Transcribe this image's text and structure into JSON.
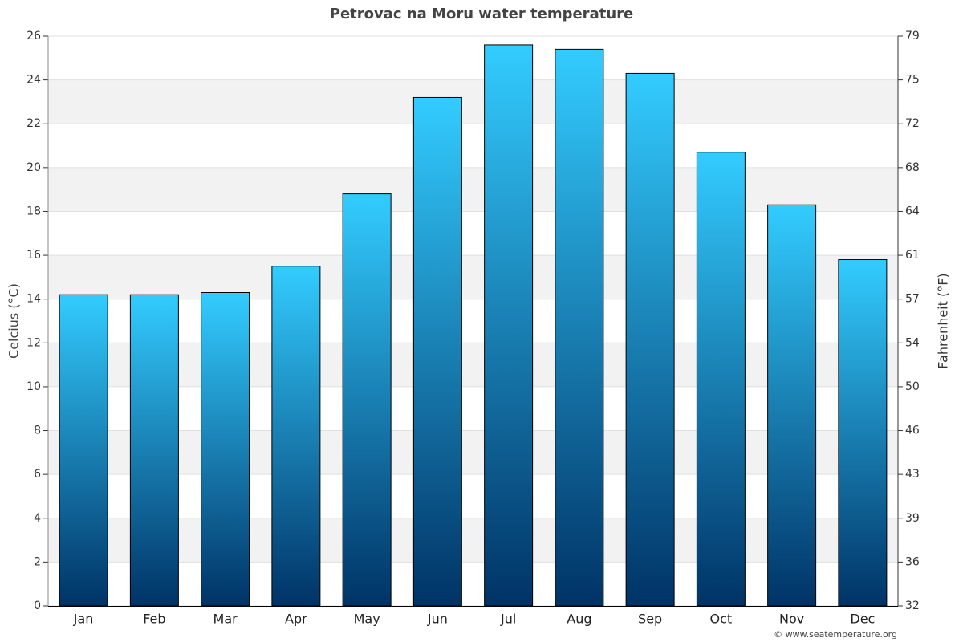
{
  "chart_data": {
    "type": "bar",
    "title": "Petrovac na Moru water temperature",
    "categories": [
      "Jan",
      "Feb",
      "Mar",
      "Apr",
      "May",
      "Jun",
      "Jul",
      "Aug",
      "Sep",
      "Oct",
      "Nov",
      "Dec"
    ],
    "series": [
      {
        "name": "Water temperature",
        "color": [
          "#33ccff",
          "#003366"
        ],
        "values": [
          14.2,
          14.2,
          14.3,
          15.5,
          18.8,
          23.2,
          25.6,
          25.4,
          24.3,
          20.7,
          18.3,
          15.8
        ]
      }
    ],
    "ylabel": "Celcius (°C)",
    "y2label": "Fahrenheit (°F)",
    "ylim": [
      0,
      26
    ],
    "yticks": [
      0,
      2,
      4,
      6,
      8,
      10,
      12,
      14,
      16,
      18,
      20,
      22,
      24,
      26
    ],
    "y2lim": [
      32,
      78.8
    ],
    "y2ticks": [
      32,
      {
        "value": 35.6,
        "label": "36"
      },
      {
        "value": 39.2,
        "label": "39"
      },
      {
        "value": 42.8,
        "label": "43"
      },
      {
        "value": 46.4,
        "label": "46"
      },
      50,
      {
        "value": 53.6,
        "label": "54"
      },
      {
        "value": 57.2,
        "label": "57"
      },
      {
        "value": 60.8,
        "label": "61"
      },
      {
        "value": 64.4,
        "label": "64"
      },
      68,
      {
        "value": 71.6,
        "label": "72"
      },
      {
        "value": 75.2,
        "label": "75"
      },
      {
        "value": 78.8,
        "label": "79"
      }
    ],
    "grid": true,
    "credit": "© www.seatemperature.org"
  }
}
